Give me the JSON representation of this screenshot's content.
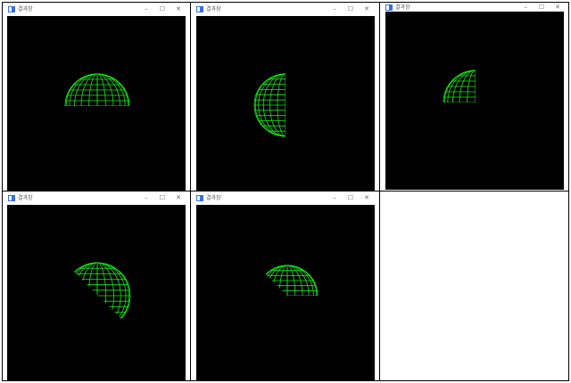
{
  "windows": [
    {
      "title": "결과창",
      "controls": {
        "minimize": "–",
        "maximize": "☐",
        "close": "✕"
      },
      "sphere_view": "upper-half"
    },
    {
      "title": "결과창",
      "controls": {
        "minimize": "–",
        "maximize": "☐",
        "close": "✕"
      },
      "sphere_view": "left-half"
    },
    {
      "title": "결과창",
      "controls": {
        "minimize": "–",
        "maximize": "☐",
        "close": "✕"
      },
      "sphere_view": "upper-left-quarter"
    },
    {
      "title": "결과창",
      "controls": {
        "minimize": "–",
        "maximize": "☐",
        "close": "✕"
      },
      "sphere_view": "diagonal-cut-upper-right"
    },
    {
      "title": "결과창",
      "controls": {
        "minimize": "–",
        "maximize": "☐",
        "close": "✕"
      },
      "sphere_view": "diagonal-cut-lower-right-missing"
    }
  ],
  "colors": {
    "wireframe": "#17e817",
    "canvas_bg": "#000000",
    "icon": "#3a6fd8"
  }
}
